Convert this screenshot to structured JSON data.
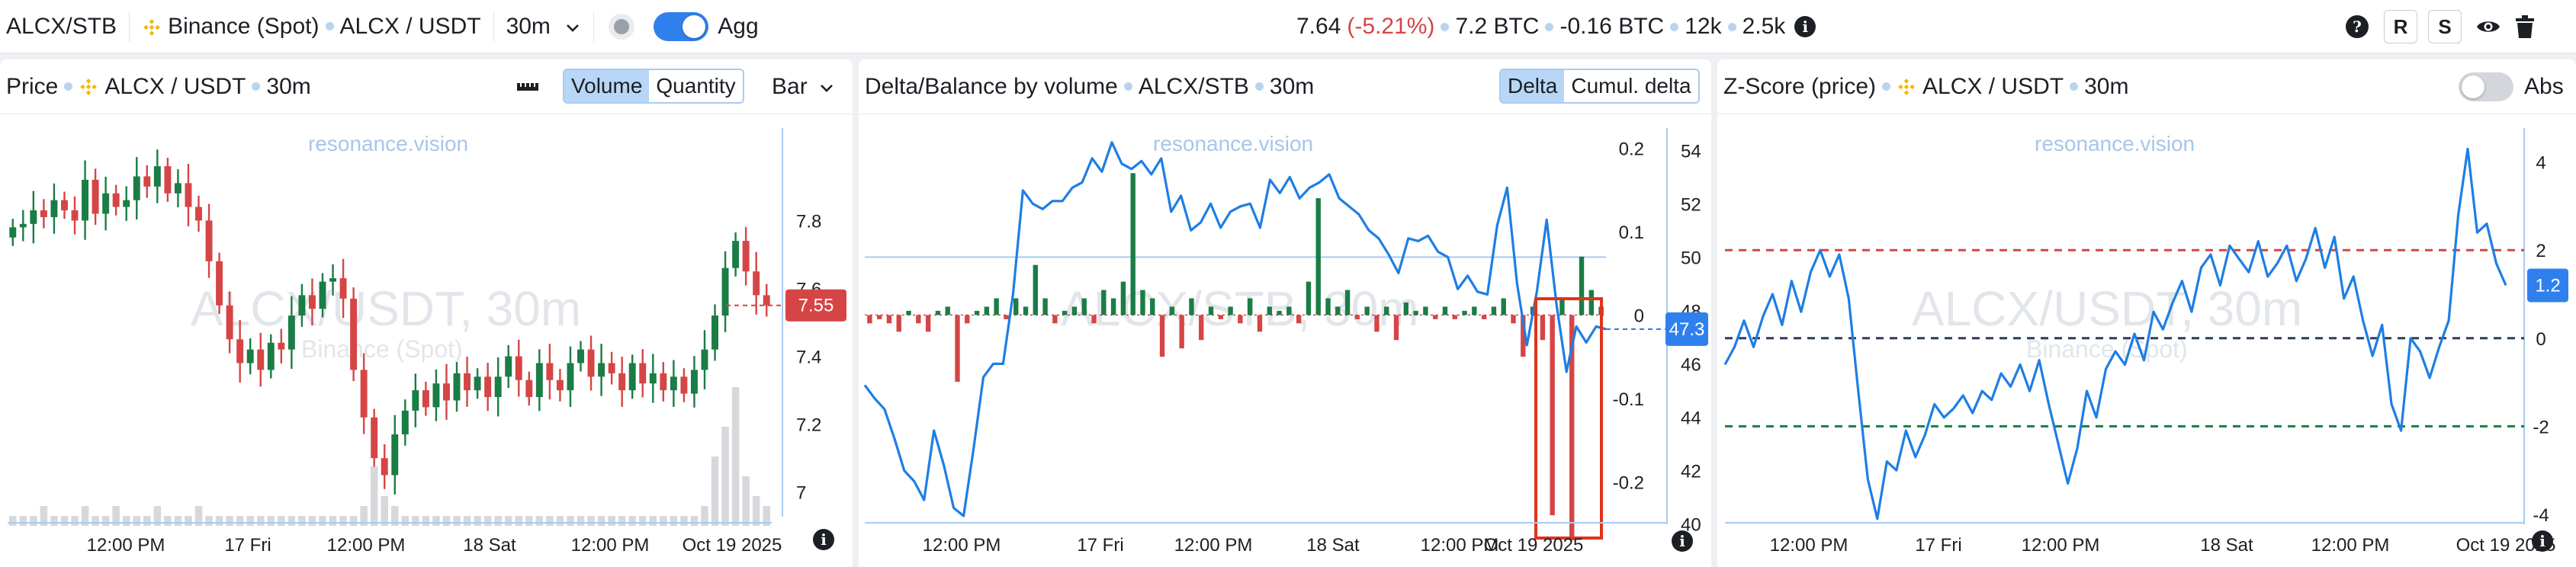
{
  "topbar": {
    "pair": "ALCX/STB",
    "exchange": "Binance (Spot)",
    "symbol": "ALCX / USDT",
    "interval": "30m",
    "agg_label": "Agg",
    "agg_on": true,
    "price": "7.64",
    "change": "(-5.21%)",
    "volume": "7.2 BTC",
    "delta": "-0.16 BTC",
    "trades": "12k",
    "count": "2.5k",
    "info_glyph": "i",
    "help_glyph": "?",
    "r_label": "R",
    "s_label": "S",
    "icons": [
      "chevron-down-icon",
      "record-icon",
      "info-icon",
      "help-icon",
      "eye-icon",
      "trash-icon"
    ]
  },
  "colors": {
    "up": "#1a7d45",
    "down": "#d64545",
    "line": "#1e7ee4",
    "accent": "#2f80ed",
    "gridline": "#a9cbf1"
  },
  "panel1": {
    "title": "Price",
    "symbol": "ALCX / USDT",
    "interval": "30m",
    "seg_volume": "Volume",
    "seg_quantity": "Quantity",
    "chart_type": "Bar",
    "watermark_site": "resonance.vision",
    "watermark_big": "ALCX/USDT, 30m",
    "watermark_small": "Binance (Spot)",
    "price_badge": "7.55",
    "chart_data": {
      "type": "candlestick",
      "y_ticks": [
        "7.8",
        "7.6",
        "7.4",
        "7.2",
        "7"
      ],
      "y_tick_values": [
        7.8,
        7.6,
        7.4,
        7.2,
        7.0
      ],
      "ylim": [
        6.95,
        8.05
      ],
      "x_ticks": [
        "12:00 PM",
        "17 Fri",
        "12:00 PM",
        "18 Sat",
        "12:00 PM",
        "Oct 19 2025"
      ],
      "last_price": 7.55,
      "close": [
        7.78,
        7.79,
        7.83,
        7.81,
        7.86,
        7.83,
        7.8,
        7.92,
        7.82,
        7.88,
        7.84,
        7.86,
        7.93,
        7.9,
        7.96,
        7.88,
        7.91,
        7.84,
        7.8,
        7.68,
        7.55,
        7.45,
        7.38,
        7.42,
        7.36,
        7.44,
        7.42,
        7.52,
        7.58,
        7.54,
        7.62,
        7.63,
        7.57,
        7.36,
        7.22,
        7.1,
        7.05,
        7.17,
        7.24,
        7.3,
        7.25,
        7.32,
        7.27,
        7.35,
        7.3,
        7.34,
        7.28,
        7.34,
        7.4,
        7.33,
        7.28,
        7.38,
        7.33,
        7.3,
        7.38,
        7.42,
        7.34,
        7.38,
        7.35,
        7.3,
        7.38,
        7.32,
        7.35,
        7.3,
        7.34,
        7.29,
        7.36,
        7.42,
        7.52,
        7.66,
        7.74,
        7.65,
        7.58,
        7.55
      ],
      "volume": [
        1,
        1,
        1,
        2,
        1,
        1,
        1,
        2,
        1,
        1,
        2,
        1,
        1,
        1,
        2,
        1,
        1,
        1,
        2,
        1,
        1,
        1,
        1,
        1,
        1,
        1,
        1,
        1,
        1,
        1,
        1,
        1,
        1,
        1,
        2,
        6,
        3,
        2,
        1,
        1,
        1,
        1,
        1,
        1,
        1,
        1,
        1,
        1,
        1,
        1,
        1,
        1,
        1,
        1,
        1,
        1,
        1,
        1,
        1,
        1,
        1,
        1,
        1,
        1,
        1,
        1,
        1,
        2,
        7,
        10,
        14,
        5,
        3,
        2
      ]
    }
  },
  "panel2": {
    "title": "Delta/Balance by volume",
    "symbol": "ALCX/STB",
    "interval": "30m",
    "seg_delta": "Delta",
    "seg_cumul": "Cumul. delta",
    "watermark_site": "resonance.vision",
    "watermark_big": "ALCX/STB, 30m",
    "balance_badge": "47.3",
    "chart_data": {
      "type": "bar+line",
      "delta_ticks": [
        "0.2",
        "0.1",
        "0",
        "-0.1",
        "-0.2"
      ],
      "delta_tick_values": [
        0.2,
        0.1,
        0,
        -0.1,
        -0.2
      ],
      "balance_ticks": [
        "54",
        "52",
        "50",
        "48",
        "46",
        "44",
        "42",
        "40"
      ],
      "balance_tick_values": [
        54,
        52,
        50,
        48,
        46,
        44,
        42,
        40
      ],
      "delta_lim": [
        -0.26,
        0.215
      ],
      "balance_lim": [
        39.7,
        54.55
      ],
      "x_ticks": [
        "12:00 PM",
        "17 Fri",
        "12:00 PM",
        "18 Sat",
        "12:00 PM",
        "Oct 19 2025"
      ],
      "last_balance": 47.3,
      "delta": [
        -0.01,
        -0.005,
        -0.01,
        -0.02,
        0.005,
        -0.01,
        -0.02,
        0.005,
        0.01,
        -0.08,
        -0.01,
        0.005,
        0.01,
        0.02,
        -0.005,
        0.02,
        0.01,
        0.06,
        0.02,
        -0.01,
        0.005,
        0.01,
        0.02,
        -0.01,
        0.03,
        0.02,
        0.04,
        0.17,
        0.03,
        0.02,
        -0.05,
        0.01,
        -0.04,
        0.02,
        -0.03,
        0.01,
        -0.005,
        0.01,
        -0.01,
        0.02,
        -0.02,
        0.01,
        0.005,
        0.01,
        -0.01,
        0.04,
        0.14,
        0.02,
        0.01,
        0.03,
        -0.005,
        0.01,
        -0.02,
        0.01,
        -0.03,
        0.015,
        0.005,
        0.01,
        -0.005,
        0.01,
        -0.005,
        0.005,
        0.01,
        -0.005,
        0.01,
        0.02,
        -0.01,
        -0.05,
        0.01,
        -0.03,
        -0.24,
        0.02,
        -0.27,
        0.07,
        0.03,
        0.01
      ],
      "balance": [
        45.2,
        44.7,
        44.3,
        43.2,
        42.0,
        41.6,
        40.9,
        43.5,
        42.2,
        40.6,
        40.3,
        42.8,
        45.5,
        46.0,
        46.0,
        48.6,
        52.5,
        52.0,
        51.8,
        52.1,
        52.1,
        52.6,
        52.8,
        53.7,
        53.2,
        54.3,
        53.5,
        53.3,
        53.6,
        53.1,
        53.7,
        51.7,
        52.3,
        51.0,
        51.3,
        52.0,
        51.1,
        51.7,
        51.9,
        52.0,
        51.1,
        52.9,
        52.4,
        53.0,
        52.2,
        52.6,
        52.8,
        53.1,
        52.2,
        51.9,
        51.6,
        51.0,
        50.7,
        50.1,
        49.4,
        50.7,
        50.6,
        50.8,
        50.2,
        50.0,
        48.8,
        49.3,
        48.7,
        48.6,
        51.2,
        52.6,
        49.0,
        46.7,
        48.7,
        51.4,
        48.2,
        45.7,
        47.4,
        46.8,
        47.4,
        47.3
      ]
    }
  },
  "panel3": {
    "title": "Z-Score (price)",
    "symbol": "ALCX / USDT",
    "interval": "30m",
    "abs_label": "Abs",
    "abs_on": false,
    "watermark_site": "resonance.vision",
    "watermark_big": "ALCX/USDT, 30m",
    "watermark_small": "Binance (Spot)",
    "z_badge": "1.2",
    "chart_data": {
      "type": "line",
      "y_ticks": [
        "4",
        "2",
        "0",
        "-2",
        "-4"
      ],
      "y_tick_values": [
        4,
        2,
        0,
        -2,
        -4
      ],
      "ylim": [
        -4.4,
        4.6
      ],
      "x_ticks": [
        "12:00 PM",
        "17 Fri",
        "12:00 PM",
        "18 Sat",
        "12:00 PM",
        "Oct 19 2025"
      ],
      "thresholds": [
        2,
        0,
        -2
      ],
      "last_value": 1.2,
      "values": [
        -0.6,
        -0.2,
        0.4,
        -0.2,
        0.5,
        1.0,
        0.3,
        1.3,
        0.6,
        1.5,
        2.0,
        1.4,
        1.9,
        0.9,
        -1.2,
        -3.2,
        -4.1,
        -2.8,
        -3.0,
        -2.1,
        -2.7,
        -2.2,
        -1.5,
        -1.8,
        -1.6,
        -1.3,
        -1.7,
        -1.2,
        -1.4,
        -0.8,
        -1.1,
        -0.6,
        -1.2,
        -0.5,
        -1.5,
        -2.4,
        -3.3,
        -2.5,
        -1.2,
        -1.8,
        -0.7,
        -0.3,
        -0.6,
        0.1,
        -0.5,
        0.6,
        0.2,
        0.8,
        1.3,
        0.6,
        1.6,
        1.9,
        1.2,
        2.1,
        1.8,
        1.5,
        2.2,
        1.4,
        1.7,
        2.1,
        1.3,
        1.8,
        2.5,
        1.6,
        2.3,
        0.9,
        1.4,
        0.4,
        -0.4,
        0.3,
        -1.5,
        -2.1,
        0.0,
        -0.3,
        -0.9,
        -0.2,
        0.4,
        2.8,
        4.3,
        2.4,
        2.6,
        1.7,
        1.2
      ]
    }
  }
}
